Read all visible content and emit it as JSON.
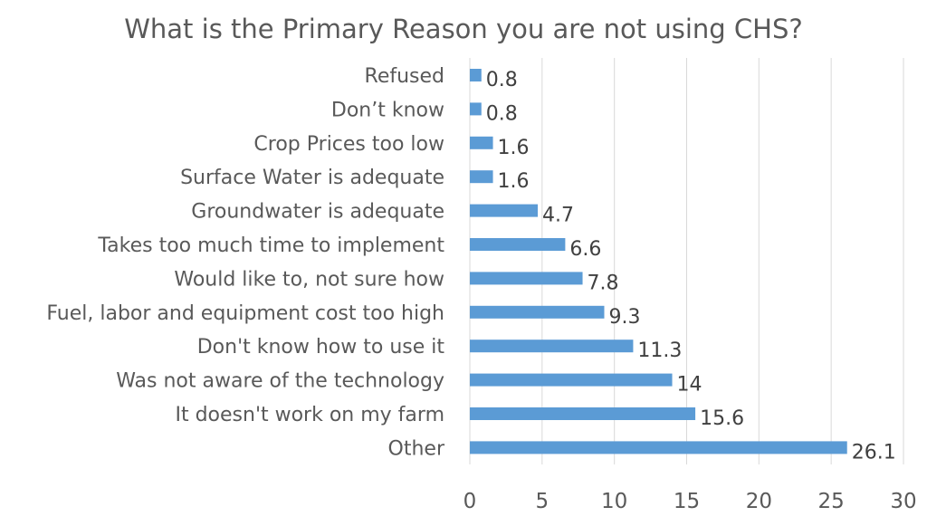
{
  "chart_data": {
    "type": "bar",
    "orientation": "horizontal",
    "title": "What is the Primary Reason you are not using CHS?",
    "categories": [
      "Refused",
      "Don’t know",
      "Crop Prices too low",
      "Surface Water is adequate",
      "Groundwater is adequate",
      "Takes too much time to implement",
      "Would like to, not sure how",
      "Fuel, labor and equipment cost too high",
      "Don't know how to use it",
      "Was not aware of the technology",
      "It doesn't work on my farm",
      "Other"
    ],
    "values": [
      0.8,
      0.8,
      1.6,
      1.6,
      4.7,
      6.6,
      7.8,
      9.3,
      11.3,
      14,
      15.6,
      26.1
    ],
    "data_labels": [
      "0.8",
      "0.8",
      "1.6",
      "1.6",
      "4.7",
      "6.6",
      "7.8",
      "9.3",
      "11.3",
      "14",
      "15.6",
      "26.1"
    ],
    "xlim": [
      0,
      30
    ],
    "x_ticks": [
      "0",
      "5",
      "10",
      "15",
      "20",
      "25",
      "30"
    ],
    "xlabel": "",
    "ylabel": "",
    "grid": "vertical",
    "legend": "none",
    "bar_color": "#5B9BD5"
  }
}
